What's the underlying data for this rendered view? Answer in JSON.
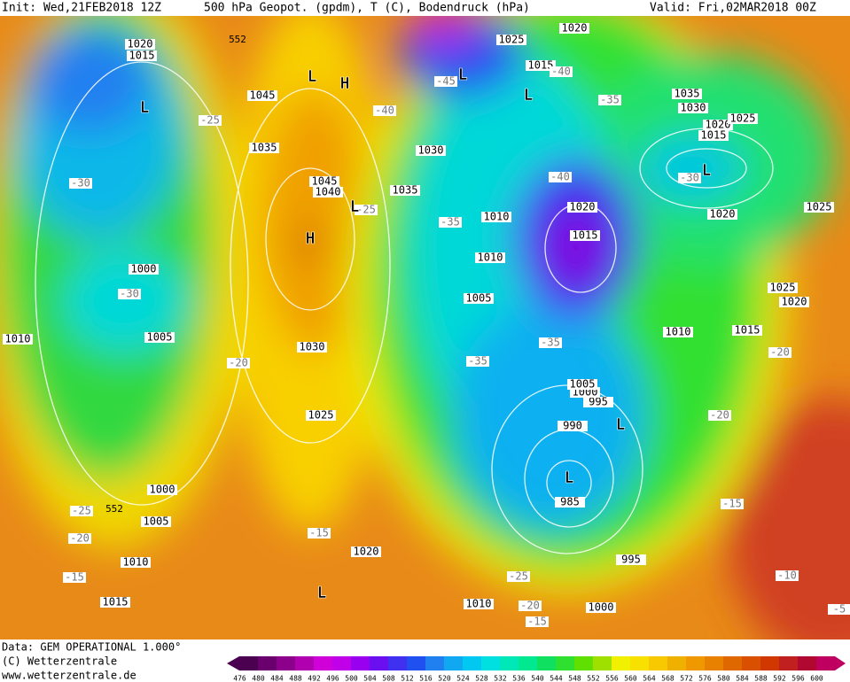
{
  "header": {
    "init": "Init: Wed,21FEB2018 12Z",
    "title": "500 hPa Geopot. (gpdm), T (C), Bodendruck (hPa)",
    "valid": "Valid: Fri,02MAR2018 00Z"
  },
  "footer": {
    "source": "Data: GEM OPERATIONAL 1.000°",
    "copyright": "(C) Wetterzentrale",
    "url": "www.wetterzentrale.de"
  },
  "colorbar": {
    "ticks": [
      476,
      480,
      484,
      488,
      492,
      496,
      500,
      504,
      508,
      512,
      516,
      520,
      524,
      528,
      532,
      536,
      540,
      544,
      548,
      552,
      556,
      560,
      564,
      568,
      572,
      576,
      580,
      584,
      588,
      592,
      596,
      600
    ],
    "colors": [
      "#4b0050",
      "#6a006e",
      "#8c008c",
      "#b000b0",
      "#d000d8",
      "#c000e8",
      "#9a00f0",
      "#6a10f0",
      "#4030f0",
      "#2050f0",
      "#2080f0",
      "#10a8f0",
      "#00c8f0",
      "#00e0e0",
      "#00e8b8",
      "#00e890",
      "#10e060",
      "#30e030",
      "#60e000",
      "#a0e000",
      "#f0f000",
      "#f8e000",
      "#f8c800",
      "#f0b000",
      "#f09800",
      "#e88000",
      "#e06800",
      "#d85000",
      "#d03800",
      "#c02020",
      "#b00830",
      "#c00060"
    ]
  },
  "labels": {
    "isobars": [
      "1020",
      "1015",
      "1045",
      "1035",
      "1045",
      "1040",
      "1030",
      "1035",
      "1025",
      "1020",
      "1015",
      "1035",
      "1030",
      "1020",
      "1025",
      "1015",
      "1020",
      "1025",
      "1010",
      "1020",
      "1015",
      "1010",
      "1005",
      "1000",
      "1005",
      "1010",
      "1030",
      "1025",
      "1000",
      "1005",
      "1010",
      "1015",
      "1020",
      "1010",
      "1000",
      "995",
      "985",
      "990",
      "995",
      "1000",
      "1005",
      "1010",
      "1015",
      "1025",
      "1020"
    ],
    "temps": [
      "-25",
      "-30",
      "-30",
      "-20",
      "-25",
      "-35",
      "-40",
      "-45",
      "-40",
      "-35",
      "-40",
      "-30",
      "-35",
      "-35",
      "-20",
      "-20",
      "-15",
      "-10",
      "-15",
      "-20",
      "-15",
      "-25",
      "-25",
      "-20",
      "-15",
      "-5"
    ],
    "centers": [
      "L",
      "H",
      "L",
      "L",
      "L",
      "H",
      "L",
      "L",
      "L",
      "L",
      "L"
    ],
    "heights": [
      "552",
      "552"
    ]
  }
}
